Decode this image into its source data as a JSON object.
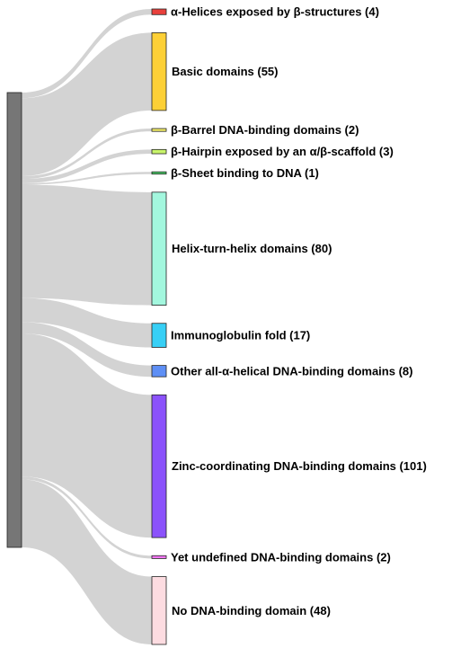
{
  "chart_data": {
    "type": "sankey",
    "source": {
      "label": "",
      "color": "#767676"
    },
    "targets": [
      {
        "label": "α-Helices exposed by β-structures (4)",
        "value": 4,
        "color": "#e8403c"
      },
      {
        "label": "Basic domains (55)",
        "value": 55,
        "color": "#fdd036"
      },
      {
        "label": "β-Barrel DNA-binding domains (2)",
        "value": 2,
        "color": "#f5ef6a"
      },
      {
        "label": "β-Hairpin exposed by an α/β-scaffold (3)",
        "value": 3,
        "color": "#c9f56b"
      },
      {
        "label": "β-Sheet binding to DNA (1)",
        "value": 1,
        "color": "#4fd26c"
      },
      {
        "label": "Helix-turn-helix domains (80)",
        "value": 80,
        "color": "#a3f7de"
      },
      {
        "label": "Immunoglobulin fold (17)",
        "value": 17,
        "color": "#37cff5"
      },
      {
        "label": "Other all-α-helical DNA-binding domains (8)",
        "value": 8,
        "color": "#5e8ff5"
      },
      {
        "label": "Zinc-coordinating DNA-binding domains (101)",
        "value": 101,
        "color": "#8b52fb"
      },
      {
        "label": "Yet undefined DNA-binding domains (2)",
        "value": 2,
        "color": "#f477f5"
      },
      {
        "label": "No DNA-binding domain (48)",
        "value": 48,
        "color": "#fddce1"
      }
    ],
    "link_color": "#d3d3d3"
  }
}
